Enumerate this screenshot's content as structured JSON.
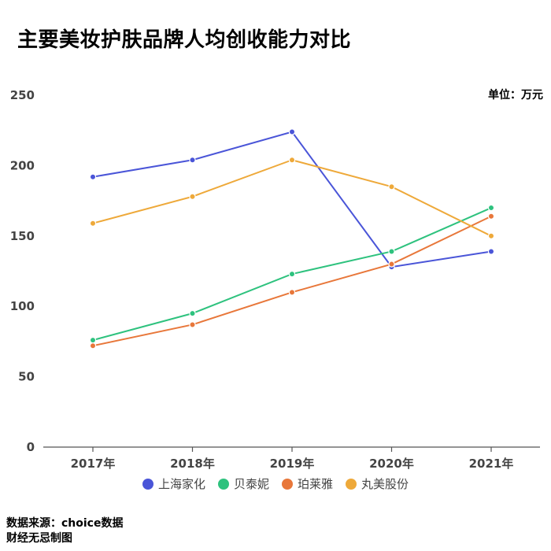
{
  "title": "主要美妆护肤品牌人均创收能力对比",
  "unit_label": "单位：万元",
  "source_line1": "数据来源：choice数据",
  "source_line2": "财经无忌制图",
  "chart_data": {
    "type": "line",
    "categories": [
      "2017年",
      "2018年",
      "2019年",
      "2020年",
      "2021年"
    ],
    "ylim": [
      0,
      250
    ],
    "yticks": [
      0,
      50,
      100,
      150,
      200,
      250
    ],
    "grid": false,
    "legend_position": "bottom",
    "series": [
      {
        "name": "上海家化",
        "color": "#4a55d8",
        "values": [
          192,
          204,
          224,
          128,
          139
        ]
      },
      {
        "name": "贝泰妮",
        "color": "#2ec27e",
        "values": [
          76,
          95,
          123,
          139,
          170
        ]
      },
      {
        "name": "珀莱雅",
        "color": "#e8773a",
        "values": [
          72,
          87,
          110,
          130,
          164
        ]
      },
      {
        "name": "丸美股份",
        "color": "#eea93a",
        "values": [
          159,
          178,
          204,
          185,
          150
        ]
      }
    ]
  }
}
